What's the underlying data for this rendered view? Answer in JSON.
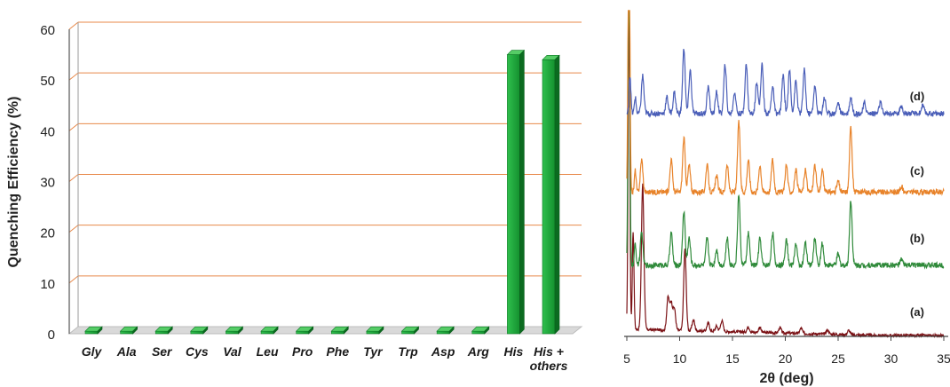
{
  "chart_data": [
    {
      "type": "bar",
      "ylabel": "Quenching Efficiency (%)",
      "ylim": [
        0,
        60
      ],
      "yticks": [
        "0",
        "10",
        "20",
        "30",
        "40",
        "50",
        "60"
      ],
      "grid": true,
      "categories": [
        "Gly",
        "Ala",
        "Ser",
        "Cys",
        "Val",
        "Leu",
        "Pro",
        "Phe",
        "Tyr",
        "Trp",
        "Asp",
        "Arg",
        "His",
        "His + others"
      ],
      "category_lines": [
        [
          "Gly"
        ],
        [
          "Ala"
        ],
        [
          "Ser"
        ],
        [
          "Cys"
        ],
        [
          "Val"
        ],
        [
          "Leu"
        ],
        [
          "Pro"
        ],
        [
          "Phe"
        ],
        [
          "Tyr"
        ],
        [
          "Trp"
        ],
        [
          "Asp"
        ],
        [
          "Arg"
        ],
        [
          "His"
        ],
        [
          "His +",
          "others"
        ]
      ],
      "values": [
        0.5,
        0.5,
        0.5,
        0.5,
        0.5,
        0.5,
        0.5,
        0.5,
        0.5,
        0.5,
        0.5,
        0.5,
        55,
        54
      ],
      "colors": {
        "bar": "#1aa33a",
        "bar_top": "#55cc66",
        "bar_side": "#0b6b20",
        "grid": "#e8894a"
      }
    },
    {
      "type": "line",
      "xlabel": "2θ (deg)",
      "xlim": [
        5,
        35
      ],
      "xticks": [
        "5",
        "10",
        "15",
        "20",
        "25",
        "30",
        "35"
      ],
      "series": [
        {
          "name": "(a)",
          "color": "#7b1216",
          "baseline": 0,
          "peaks": [
            [
              5.2,
              60
            ],
            [
              5.6,
              18
            ],
            [
              6.5,
              27
            ],
            [
              8.9,
              6
            ],
            [
              9.2,
              5
            ],
            [
              9.5,
              4
            ],
            [
              10.5,
              15
            ],
            [
              11.3,
              2
            ],
            [
              12.7,
              1.5
            ],
            [
              13.5,
              1
            ],
            [
              14.0,
              2
            ],
            [
              16.5,
              1
            ],
            [
              17.6,
              1
            ],
            [
              19.5,
              1
            ],
            [
              21.5,
              1
            ],
            [
              24.0,
              0.8
            ],
            [
              26.0,
              0.8
            ]
          ]
        },
        {
          "name": "(b)",
          "color": "#2f8a3a",
          "baseline": 13,
          "peaks": [
            [
              5.2,
              60
            ],
            [
              5.8,
              4
            ],
            [
              6.4,
              6
            ],
            [
              9.2,
              6
            ],
            [
              10.4,
              10
            ],
            [
              10.9,
              5
            ],
            [
              12.6,
              5
            ],
            [
              13.5,
              3
            ],
            [
              14.5,
              5
            ],
            [
              15.6,
              13
            ],
            [
              16.5,
              6
            ],
            [
              17.6,
              5
            ],
            [
              18.8,
              6
            ],
            [
              20.1,
              5
            ],
            [
              21.0,
              4
            ],
            [
              21.9,
              4
            ],
            [
              22.8,
              5
            ],
            [
              23.5,
              4
            ],
            [
              25.0,
              2
            ],
            [
              26.2,
              12
            ],
            [
              31.0,
              1
            ]
          ]
        },
        {
          "name": "(c)",
          "color": "#e8832a",
          "baseline": 26.5,
          "peaks": [
            [
              5.2,
              60
            ],
            [
              5.8,
              4
            ],
            [
              6.4,
              6
            ],
            [
              9.2,
              6
            ],
            [
              10.4,
              10
            ],
            [
              10.9,
              5
            ],
            [
              12.6,
              5
            ],
            [
              13.5,
              3
            ],
            [
              14.5,
              5
            ],
            [
              15.6,
              13
            ],
            [
              16.5,
              6
            ],
            [
              17.6,
              5
            ],
            [
              18.8,
              6
            ],
            [
              20.1,
              5
            ],
            [
              21.0,
              4
            ],
            [
              21.9,
              4
            ],
            [
              22.8,
              5
            ],
            [
              23.5,
              4
            ],
            [
              25.0,
              2
            ],
            [
              26.2,
              12
            ],
            [
              31.0,
              1
            ]
          ]
        },
        {
          "name": "(d)",
          "color": "#4a5eb8",
          "baseline": 41,
          "peaks": [
            [
              5.3,
              7
            ],
            [
              5.8,
              3
            ],
            [
              6.5,
              7
            ],
            [
              8.8,
              3
            ],
            [
              9.5,
              4
            ],
            [
              10.4,
              12
            ],
            [
              11.0,
              8
            ],
            [
              12.7,
              5
            ],
            [
              13.5,
              4
            ],
            [
              14.3,
              9
            ],
            [
              15.2,
              4
            ],
            [
              16.3,
              9
            ],
            [
              17.3,
              6
            ],
            [
              17.8,
              9
            ],
            [
              18.8,
              5
            ],
            [
              19.8,
              7
            ],
            [
              20.4,
              8
            ],
            [
              21.0,
              6
            ],
            [
              21.8,
              8
            ],
            [
              22.8,
              5
            ],
            [
              23.7,
              3
            ],
            [
              25.0,
              2
            ],
            [
              26.2,
              3
            ],
            [
              27.5,
              2
            ],
            [
              29.0,
              2
            ],
            [
              31.0,
              1.5
            ],
            [
              33.0,
              1.5
            ]
          ]
        }
      ]
    }
  ]
}
